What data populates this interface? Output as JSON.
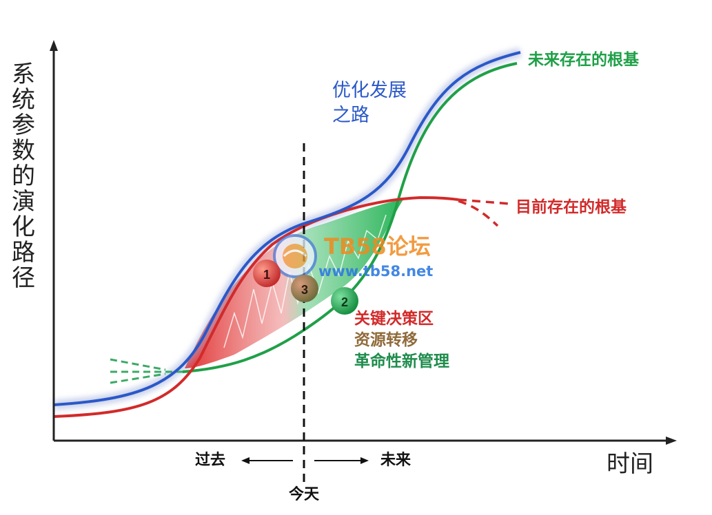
{
  "y_axis_label": "系统参数的演化路径",
  "x_axis_label": "时间",
  "curves": {
    "blue_label_line1": "优化发展",
    "blue_label_line2": "之路",
    "green_label": "未来存在的根基",
    "red_label": "目前存在的根基"
  },
  "markers": [
    {
      "label": "1",
      "color": "#d83a34"
    },
    {
      "label": "2",
      "color": "#20a050"
    },
    {
      "label": "3",
      "color": "#9a6a48"
    }
  ],
  "legend": {
    "item1": "关键决策区",
    "item2": "资源转移",
    "item3": "革命性新管理"
  },
  "timeline": {
    "past": "过去",
    "future": "未来",
    "today": "今天"
  },
  "watermark": {
    "title": "TB58论坛",
    "url": "www.tb58.net"
  },
  "colors": {
    "blue": "#2a58c8",
    "green": "#1fa048",
    "red": "#d22a2a",
    "axis": "#222222"
  }
}
